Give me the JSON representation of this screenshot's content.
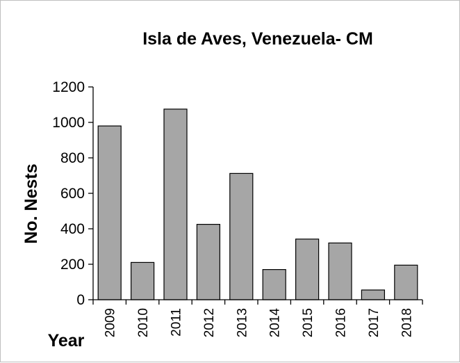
{
  "chart_data": {
    "type": "bar",
    "title": "Isla de Aves, Venezuela- CM",
    "xlabel": "Year",
    "ylabel": "No. Nests",
    "categories": [
      "2009",
      "2010",
      "2011",
      "2012",
      "2013",
      "2014",
      "2015",
      "2016",
      "2017",
      "2018"
    ],
    "values": [
      980,
      210,
      1075,
      425,
      712,
      170,
      342,
      320,
      55,
      195
    ],
    "ylim": [
      0,
      1200
    ],
    "yticks": [
      "0",
      "200",
      "400",
      "600",
      "800",
      "1000",
      "1200"
    ],
    "grid": false,
    "bar_color": "#a6a6a6",
    "bar_edge_color": "#000000"
  }
}
